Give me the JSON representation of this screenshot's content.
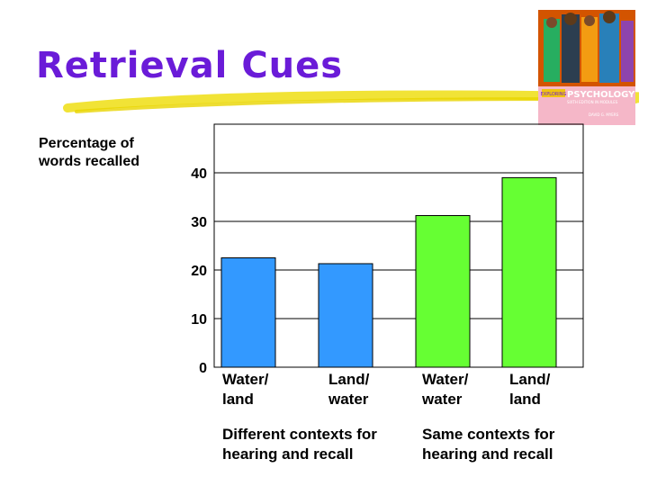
{
  "slide": {
    "title": "Retrieval Cues",
    "ylabel": "Percentage of\nwords recalled"
  },
  "book_cover": {
    "icon": "book-cover-icon",
    "badge_text": "EXPLORING",
    "title_text": "PSYCHOLOGY",
    "edition_text": "SIXTH EDITION IN MODULES",
    "author_text": "DAVID G. MYERS"
  },
  "chart_data": {
    "type": "bar",
    "ylim": [
      0,
      50
    ],
    "yticks": [
      "0",
      "10",
      "20",
      "30",
      "40"
    ],
    "grid": true,
    "categories": [
      "Water/\nland",
      "Land/\nwater",
      "Water/\nwater",
      "Land/\nland"
    ],
    "values": [
      22.5,
      21.3,
      31.2,
      39
    ],
    "colors": [
      "#3399ff",
      "#3399ff",
      "#66ff33",
      "#66ff33"
    ],
    "groups": [
      {
        "label": "Different contexts for\nhearing and recall",
        "color": "#3399ff"
      },
      {
        "label": "Same contexts for\nhearing and recall",
        "color": "#66ff33"
      }
    ]
  }
}
